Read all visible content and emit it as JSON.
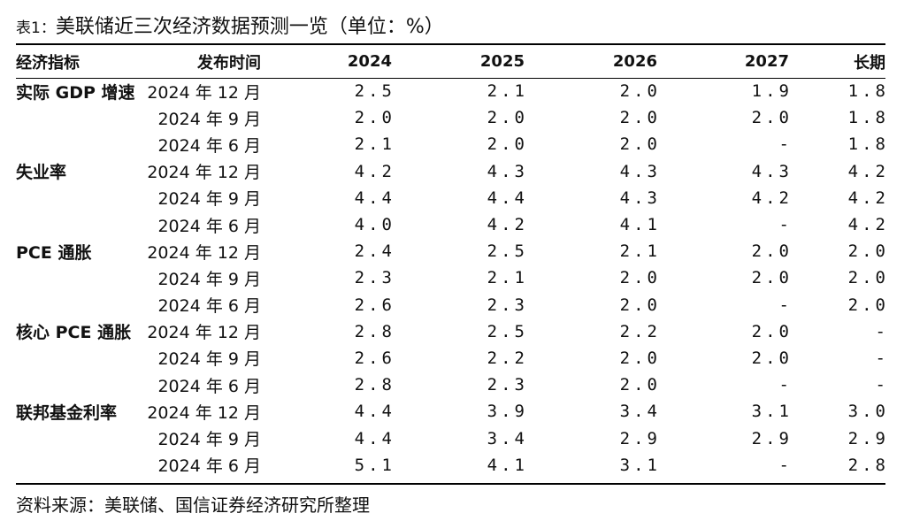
{
  "caption": {
    "prefix": "表1：",
    "title": "美联储近三次经济数据预测一览（单位：%）"
  },
  "table": {
    "headers": [
      "经济指标",
      "发布时间",
      "2024",
      "2025",
      "2026",
      "2027",
      "长期"
    ],
    "groups": [
      {
        "indicator": "实际 GDP 增速",
        "rows": [
          {
            "date": "2024 年 12 月",
            "values": [
              "2.5",
              "2.1",
              "2.0",
              "1.9",
              "1.8"
            ]
          },
          {
            "date": "2024 年 9 月",
            "values": [
              "2.0",
              "2.0",
              "2.0",
              "2.0",
              "1.8"
            ]
          },
          {
            "date": "2024 年 6 月",
            "values": [
              "2.1",
              "2.0",
              "2.0",
              "-",
              "1.8"
            ]
          }
        ]
      },
      {
        "indicator": "失业率",
        "rows": [
          {
            "date": "2024 年 12 月",
            "values": [
              "4.2",
              "4.3",
              "4.3",
              "4.3",
              "4.2"
            ]
          },
          {
            "date": "2024 年 9 月",
            "values": [
              "4.4",
              "4.4",
              "4.3",
              "4.2",
              "4.2"
            ]
          },
          {
            "date": "2024 年 6 月",
            "values": [
              "4.0",
              "4.2",
              "4.1",
              "-",
              "4.2"
            ]
          }
        ]
      },
      {
        "indicator": "PCE 通胀",
        "rows": [
          {
            "date": "2024 年 12 月",
            "values": [
              "2.4",
              "2.5",
              "2.1",
              "2.0",
              "2.0"
            ]
          },
          {
            "date": "2024 年 9 月",
            "values": [
              "2.3",
              "2.1",
              "2.0",
              "2.0",
              "2.0"
            ]
          },
          {
            "date": "2024 年 6 月",
            "values": [
              "2.6",
              "2.3",
              "2.0",
              "-",
              "2.0"
            ]
          }
        ]
      },
      {
        "indicator": "核心 PCE 通胀",
        "rows": [
          {
            "date": "2024 年 12 月",
            "values": [
              "2.8",
              "2.5",
              "2.2",
              "2.0",
              "-"
            ]
          },
          {
            "date": "2024 年 9 月",
            "values": [
              "2.6",
              "2.2",
              "2.0",
              "2.0",
              "-"
            ]
          },
          {
            "date": "2024 年 6 月",
            "values": [
              "2.8",
              "2.3",
              "2.0",
              "-",
              "-"
            ]
          }
        ]
      },
      {
        "indicator": "联邦基金利率",
        "rows": [
          {
            "date": "2024 年 12 月",
            "values": [
              "4.4",
              "3.9",
              "3.4",
              "3.1",
              "3.0"
            ]
          },
          {
            "date": "2024 年 9 月",
            "values": [
              "4.4",
              "3.4",
              "2.9",
              "2.9",
              "2.9"
            ]
          },
          {
            "date": "2024 年 6 月",
            "values": [
              "5.1",
              "4.1",
              "3.1",
              "-",
              "2.8"
            ]
          }
        ]
      }
    ]
  },
  "footnote": "资料来源：美联储、国信证券经济研究所整理"
}
